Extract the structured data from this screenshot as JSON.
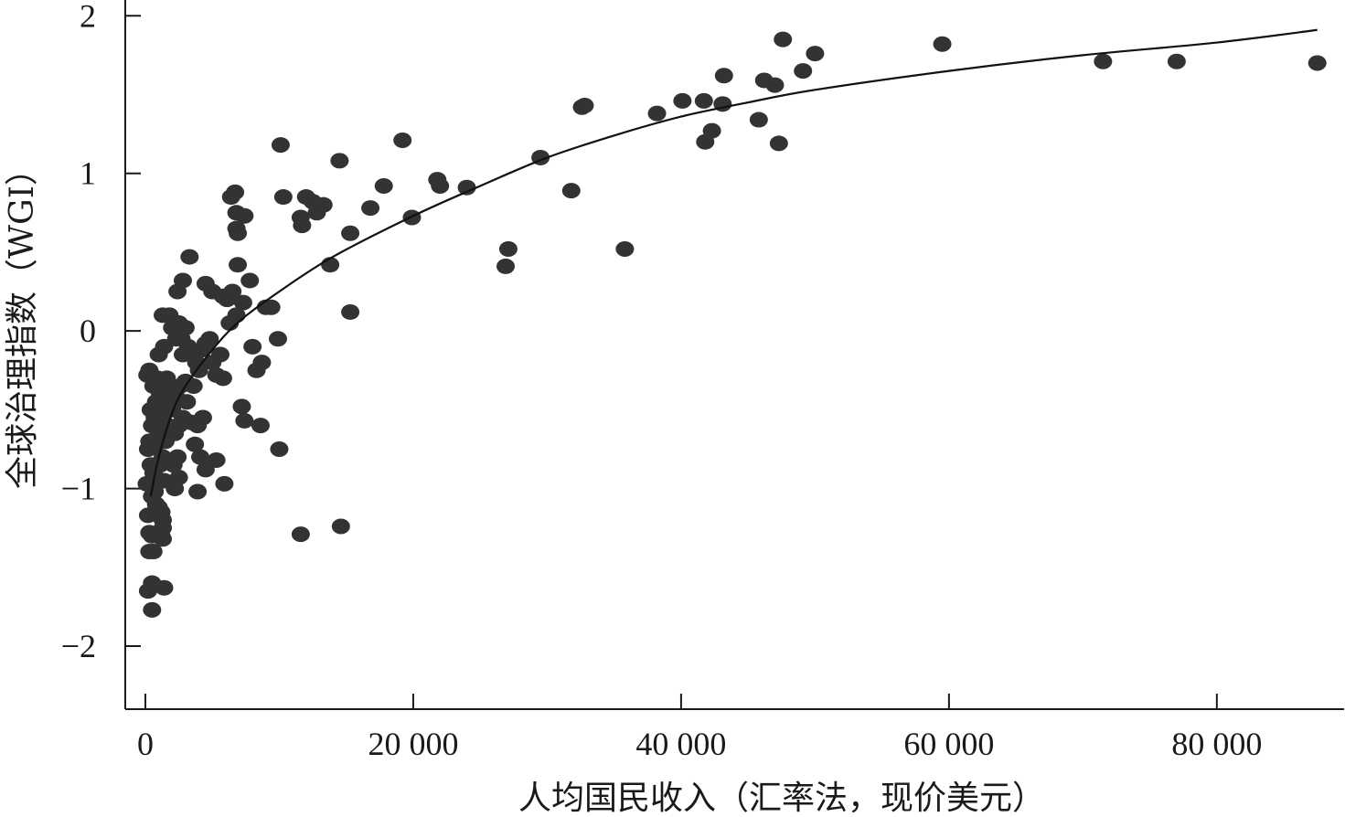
{
  "chart_data": {
    "type": "scatter",
    "title": "",
    "xlabel": "人均国民收入（汇率法，现价美元）",
    "ylabel": "全球治理指数（WGI）",
    "xlim": [
      -1500,
      89500
    ],
    "ylim": [
      -2.4,
      2.1
    ],
    "xticks": [
      0,
      20000,
      40000,
      60000,
      80000
    ],
    "xtick_labels": [
      "0",
      "20 000",
      "40 000",
      "60 000",
      "80 000"
    ],
    "yticks": [
      -2,
      -1,
      0,
      1,
      2
    ],
    "ytick_labels": [
      "−2",
      "−1",
      "0",
      "1",
      "2"
    ],
    "grid": false,
    "legend": "none",
    "trend": {
      "type": "fitted curve",
      "x_range": [
        400,
        87500
      ]
    },
    "points": [
      [
        150,
        -0.28
      ],
      [
        300,
        -0.25
      ],
      [
        400,
        -0.5
      ],
      [
        500,
        -0.6
      ],
      [
        300,
        -0.7
      ],
      [
        200,
        -0.75
      ],
      [
        400,
        -0.85
      ],
      [
        600,
        -0.9
      ],
      [
        400,
        -0.97
      ],
      [
        500,
        -1.05
      ],
      [
        800,
        -1.1
      ],
      [
        1000,
        -1.12
      ],
      [
        1200,
        -1.15
      ],
      [
        1300,
        -1.2
      ],
      [
        1300,
        -1.25
      ],
      [
        1200,
        -1.3
      ],
      [
        1300,
        -1.32
      ],
      [
        500,
        -1.3
      ],
      [
        300,
        -1.4
      ],
      [
        600,
        -1.4
      ],
      [
        500,
        -1.6
      ],
      [
        1400,
        -1.63
      ],
      [
        200,
        -1.65
      ],
      [
        500,
        -1.77
      ],
      [
        200,
        -1.17
      ],
      [
        300,
        -1.28
      ],
      [
        100,
        -0.97
      ],
      [
        700,
        -0.55
      ],
      [
        800,
        -0.45
      ],
      [
        600,
        -0.35
      ],
      [
        900,
        -0.3
      ],
      [
        1100,
        -0.4
      ],
      [
        1200,
        -0.5
      ],
      [
        1000,
        -0.65
      ],
      [
        800,
        -0.72
      ],
      [
        1300,
        -0.8
      ],
      [
        1500,
        -0.7
      ],
      [
        1700,
        -0.6
      ],
      [
        1100,
        -0.85
      ],
      [
        1400,
        -0.95
      ],
      [
        700,
        -1.02
      ],
      [
        1800,
        -0.45
      ],
      [
        1600,
        -0.3
      ],
      [
        1000,
        -0.15
      ],
      [
        1400,
        -0.1
      ],
      [
        1300,
        0.1
      ],
      [
        1800,
        0.1
      ],
      [
        2000,
        0.02
      ],
      [
        2300,
        -0.05
      ],
      [
        2500,
        0.05
      ],
      [
        2700,
        -0.05
      ],
      [
        2800,
        -0.15
      ],
      [
        3000,
        0.02
      ],
      [
        3200,
        -0.1
      ],
      [
        3500,
        -0.15
      ],
      [
        3800,
        -0.2
      ],
      [
        4000,
        -0.25
      ],
      [
        4200,
        -0.12
      ],
      [
        4500,
        -0.08
      ],
      [
        4800,
        -0.05
      ],
      [
        5000,
        -0.2
      ],
      [
        5300,
        -0.28
      ],
      [
        5600,
        -0.15
      ],
      [
        5800,
        -0.3
      ],
      [
        3600,
        -0.35
      ],
      [
        3100,
        -0.45
      ],
      [
        2800,
        -0.55
      ],
      [
        2500,
        -0.6
      ],
      [
        2200,
        -0.65
      ],
      [
        2000,
        -0.5
      ],
      [
        2300,
        -0.42
      ],
      [
        2600,
        -0.35
      ],
      [
        3000,
        -0.32
      ],
      [
        3400,
        -0.58
      ],
      [
        3900,
        -0.6
      ],
      [
        4300,
        -0.55
      ],
      [
        3700,
        -0.72
      ],
      [
        4100,
        -0.8
      ],
      [
        4500,
        -0.88
      ],
      [
        5300,
        -0.82
      ],
      [
        5900,
        -0.97
      ],
      [
        3900,
        -1.02
      ],
      [
        2500,
        -0.93
      ],
      [
        2200,
        -1.0
      ],
      [
        1200,
        -0.53
      ],
      [
        1500,
        -0.38
      ],
      [
        2400,
        -0.8
      ],
      [
        2100,
        -0.85
      ],
      [
        2400,
        0.25
      ],
      [
        2800,
        0.32
      ],
      [
        3300,
        0.47
      ],
      [
        4500,
        0.3
      ],
      [
        5000,
        0.25
      ],
      [
        5800,
        0.22
      ],
      [
        6100,
        0.2
      ],
      [
        6500,
        0.25
      ],
      [
        6900,
        0.42
      ],
      [
        7300,
        0.18
      ],
      [
        7800,
        0.32
      ],
      [
        6300,
        0.05
      ],
      [
        6800,
        0.1
      ],
      [
        8000,
        -0.1
      ],
      [
        8300,
        -0.25
      ],
      [
        8700,
        -0.2
      ],
      [
        8600,
        -0.6
      ],
      [
        7200,
        -0.48
      ],
      [
        7400,
        -0.57
      ],
      [
        9000,
        0.15
      ],
      [
        9400,
        0.15
      ],
      [
        9900,
        -0.05
      ],
      [
        10000,
        -0.75
      ],
      [
        6400,
        0.85
      ],
      [
        6700,
        0.88
      ],
      [
        6800,
        0.75
      ],
      [
        6800,
        0.65
      ],
      [
        6900,
        0.62
      ],
      [
        7400,
        0.73
      ],
      [
        10100,
        1.18
      ],
      [
        10300,
        0.85
      ],
      [
        11600,
        0.72
      ],
      [
        11700,
        0.67
      ],
      [
        12000,
        0.85
      ],
      [
        12500,
        0.82
      ],
      [
        12800,
        0.75
      ],
      [
        13300,
        0.8
      ],
      [
        13800,
        0.42
      ],
      [
        14500,
        1.08
      ],
      [
        15300,
        0.62
      ],
      [
        15300,
        0.12
      ],
      [
        16800,
        0.78
      ],
      [
        17800,
        0.92
      ],
      [
        19200,
        1.21
      ],
      [
        19900,
        0.72
      ],
      [
        21800,
        0.96
      ],
      [
        22000,
        0.92
      ],
      [
        24000,
        0.91
      ],
      [
        11600,
        -1.29
      ],
      [
        14600,
        -1.24
      ],
      [
        26900,
        0.41
      ],
      [
        27100,
        0.52
      ],
      [
        29500,
        1.1
      ],
      [
        31800,
        0.89
      ],
      [
        32600,
        1.42
      ],
      [
        32800,
        1.43
      ],
      [
        35800,
        0.52
      ],
      [
        38200,
        1.38
      ],
      [
        40100,
        1.46
      ],
      [
        41700,
        1.46
      ],
      [
        41800,
        1.2
      ],
      [
        42300,
        1.27
      ],
      [
        43100,
        1.44
      ],
      [
        43200,
        1.62
      ],
      [
        45800,
        1.34
      ],
      [
        46200,
        1.59
      ],
      [
        47000,
        1.56
      ],
      [
        47300,
        1.19
      ],
      [
        47600,
        1.85
      ],
      [
        49100,
        1.65
      ],
      [
        50000,
        1.76
      ],
      [
        59500,
        1.82
      ],
      [
        71500,
        1.71
      ],
      [
        77000,
        1.71
      ],
      [
        87500,
        1.7
      ]
    ]
  }
}
